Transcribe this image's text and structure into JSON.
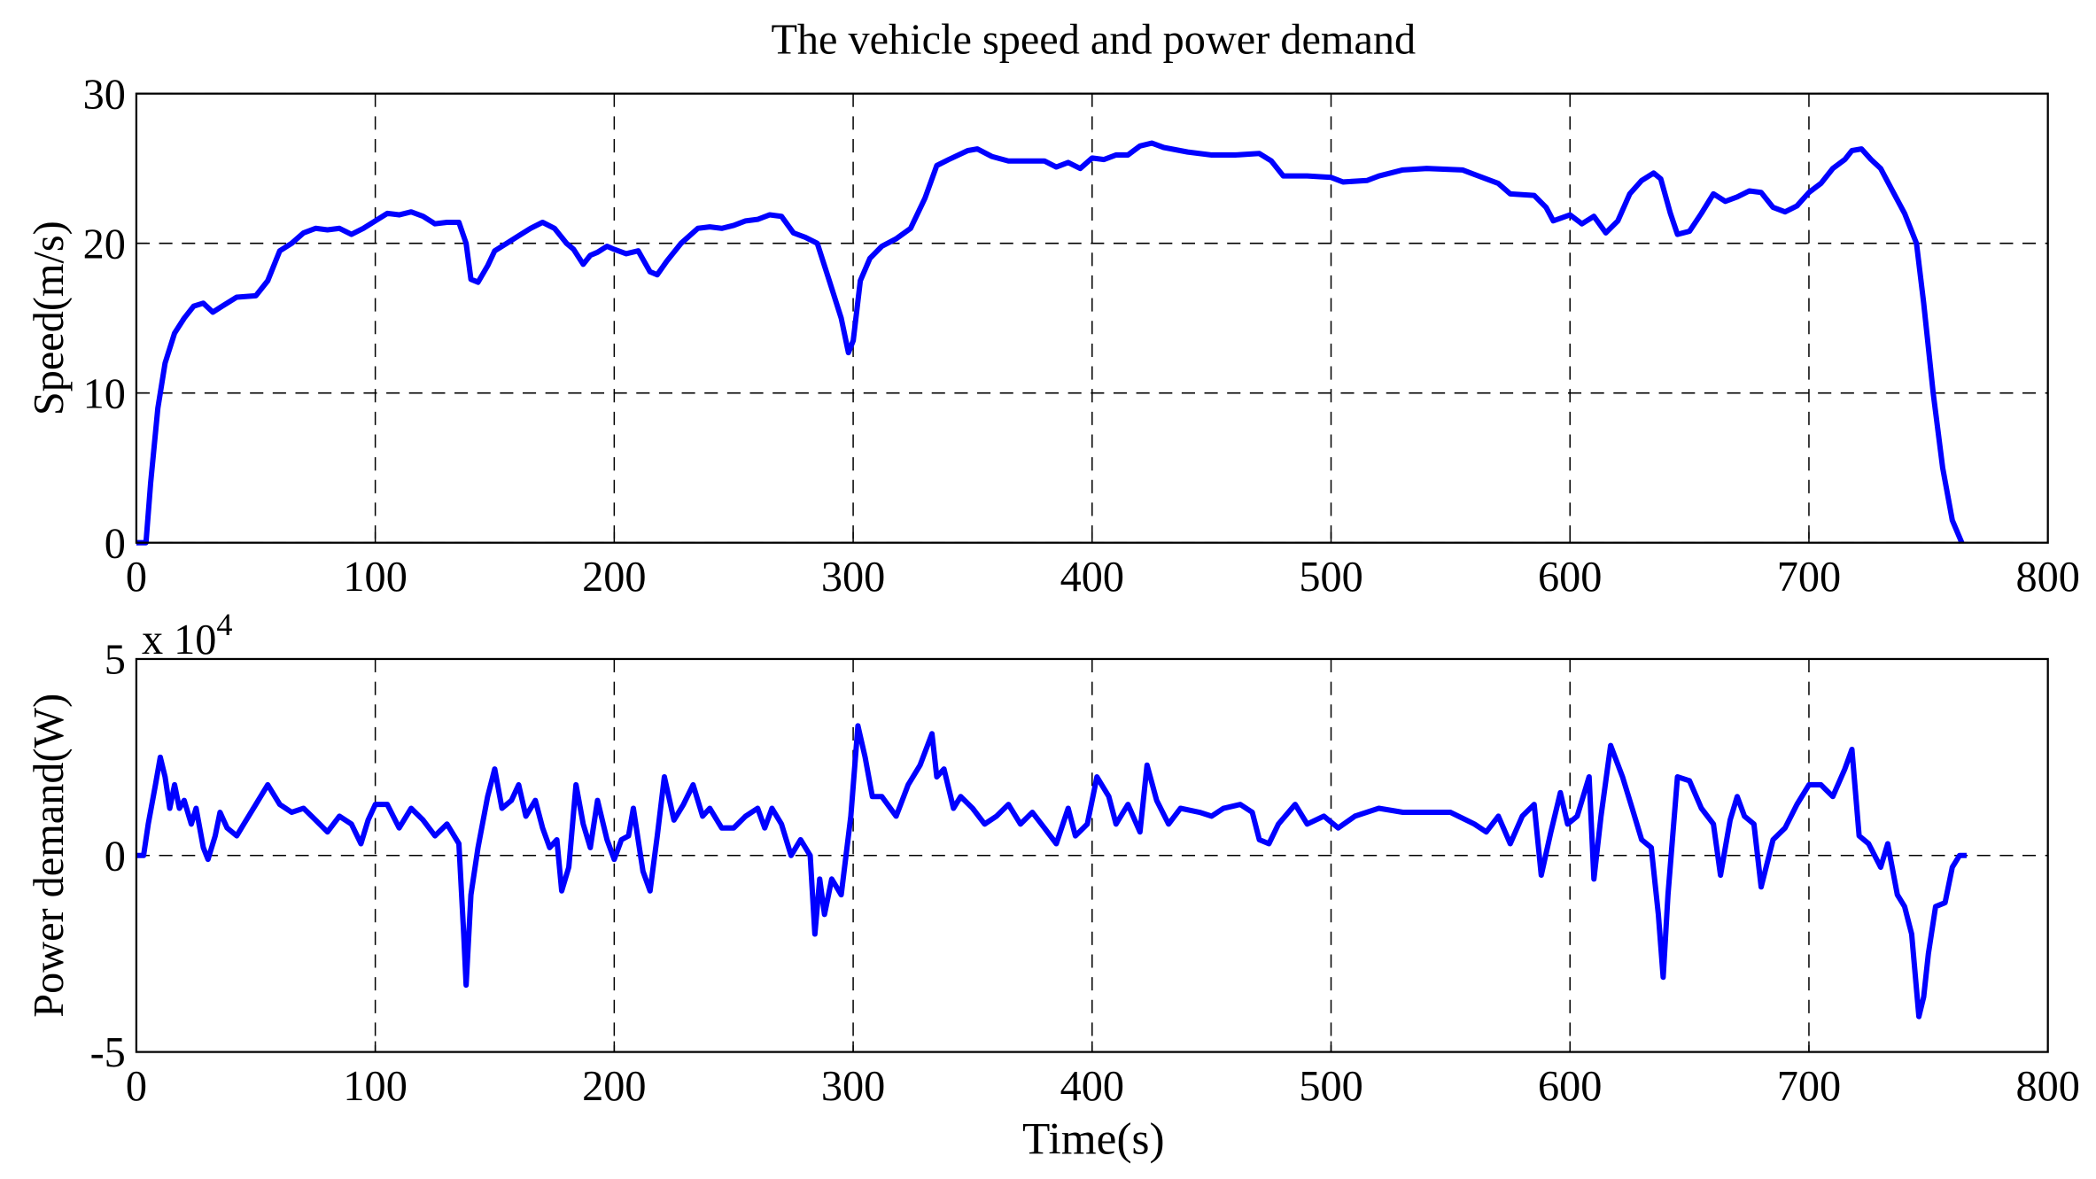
{
  "chart_data": [
    {
      "type": "line",
      "title": "The vehicle speed and power demand",
      "ylabel": "Speed(m/s)",
      "x": [
        0,
        4,
        6,
        9,
        12,
        16,
        20,
        24,
        28,
        32,
        36,
        42,
        50,
        55,
        60,
        65,
        70,
        75,
        80,
        85,
        90,
        95,
        100,
        105,
        110,
        115,
        120,
        125,
        130,
        135,
        138,
        140,
        143,
        147,
        150,
        155,
        160,
        165,
        170,
        175,
        180,
        183,
        187,
        190,
        193,
        197,
        200,
        205,
        210,
        215,
        218,
        222,
        228,
        235,
        240,
        245,
        250,
        255,
        260,
        265,
        270,
        275,
        280,
        285,
        290,
        295,
        298,
        300,
        303,
        307,
        312,
        318,
        324,
        330,
        335,
        340,
        348,
        352,
        358,
        365,
        380,
        385,
        390,
        395,
        400,
        405,
        410,
        415,
        420,
        425,
        430,
        440,
        450,
        460,
        470,
        475,
        480,
        490,
        500,
        505,
        515,
        520,
        530,
        540,
        555,
        560,
        570,
        575,
        585,
        590,
        593,
        600,
        605,
        610,
        615,
        620,
        625,
        630,
        635,
        638,
        642,
        645,
        650,
        655,
        660,
        665,
        670,
        675,
        680,
        685,
        690,
        695,
        700,
        705,
        710,
        715,
        718,
        722,
        726,
        730,
        735,
        740,
        745,
        748,
        752,
        756,
        760,
        764
      ],
      "color": "#0000ff",
      "values": [
        0,
        0,
        4,
        9,
        12,
        14,
        15,
        15.8,
        16,
        15.4,
        15.8,
        16.4,
        16.5,
        17.5,
        19.5,
        20,
        20.7,
        21,
        20.9,
        21,
        20.6,
        21,
        21.5,
        22,
        21.9,
        22.1,
        21.8,
        21.3,
        21.4,
        21.4,
        20,
        17.6,
        17.4,
        18.5,
        19.5,
        20,
        20.5,
        21,
        21.4,
        21,
        20,
        19.6,
        18.6,
        19.2,
        19.4,
        19.8,
        19.6,
        19.3,
        19.5,
        18.1,
        17.9,
        18.8,
        20,
        21,
        21.1,
        21,
        21.2,
        21.5,
        21.6,
        21.9,
        21.8,
        20.7,
        20.4,
        20,
        17.5,
        15,
        12.7,
        13.5,
        17.5,
        19,
        19.8,
        20.3,
        21,
        23,
        25.2,
        25.6,
        26.2,
        26.3,
        25.8,
        25.5,
        25.5,
        25.1,
        25.4,
        25,
        25.7,
        25.6,
        25.9,
        25.9,
        26.5,
        26.7,
        26.4,
        26.1,
        25.9,
        25.9,
        26,
        25.5,
        24.5,
        24.5,
        24.4,
        24.1,
        24.2,
        24.5,
        24.9,
        25,
        24.9,
        24.6,
        24,
        23.3,
        23.2,
        22.4,
        21.5,
        21.9,
        21.3,
        21.8,
        20.7,
        21.5,
        23.3,
        24.2,
        24.7,
        24.3,
        22,
        20.6,
        20.8,
        22,
        23.3,
        22.8,
        23.1,
        23.5,
        23.4,
        22.4,
        22.1,
        22.5,
        23.4,
        24,
        25,
        25.6,
        26.2,
        26.3,
        25.6,
        25,
        23.5,
        22,
        20,
        16,
        10,
        5,
        1.5,
        0
      ],
      "xlim": [
        0,
        800
      ],
      "xticks": [
        0,
        100,
        200,
        300,
        400,
        500,
        600,
        700,
        800
      ],
      "ylim": [
        0,
        30
      ],
      "yticks": [
        0,
        10,
        20,
        30
      ],
      "grid": true
    },
    {
      "type": "line",
      "ylabel": "Power demand(W)",
      "xlabel": "Time(s)",
      "y_scale_label": "x 10",
      "y_scale_exponent": "4",
      "x": [
        0,
        3,
        5,
        8,
        10,
        12,
        14,
        16,
        18,
        20,
        23,
        25,
        28,
        30,
        33,
        35,
        38,
        42,
        45,
        50,
        55,
        60,
        65,
        70,
        75,
        80,
        85,
        90,
        94,
        97,
        100,
        105,
        110,
        115,
        120,
        125,
        130,
        135,
        137,
        138,
        140,
        143,
        147,
        150,
        153,
        157,
        160,
        163,
        167,
        170,
        173,
        176,
        178,
        181,
        184,
        187,
        190,
        193,
        197,
        200,
        203,
        206,
        208,
        212,
        215,
        218,
        221,
        225,
        229,
        233,
        237,
        240,
        245,
        250,
        255,
        260,
        263,
        266,
        270,
        274,
        278,
        282,
        284,
        286,
        288,
        291,
        295,
        299,
        302,
        305,
        308,
        312,
        318,
        323,
        328,
        333,
        335,
        338,
        342,
        345,
        350,
        355,
        360,
        365,
        370,
        375,
        380,
        385,
        390,
        393,
        398,
        402,
        407,
        410,
        415,
        420,
        423,
        427,
        432,
        437,
        445,
        450,
        455,
        462,
        467,
        470,
        474,
        478,
        485,
        490,
        497,
        503,
        510,
        520,
        530,
        540,
        550,
        560,
        565,
        570,
        575,
        580,
        585,
        588,
        592,
        596,
        599,
        603,
        608,
        610,
        613,
        617,
        622,
        626,
        630,
        634,
        637,
        639,
        641,
        645,
        650,
        655,
        660,
        663,
        667,
        670,
        673,
        677,
        680,
        685,
        690,
        695,
        700,
        705,
        710,
        715,
        718,
        721,
        725,
        730,
        733,
        737,
        740,
        743,
        746,
        748,
        750,
        753,
        757,
        760,
        763,
        766
      ],
      "color": "#0000ff",
      "values": [
        0,
        0,
        0.8,
        1.8,
        2.5,
        2,
        1.2,
        1.8,
        1.2,
        1.4,
        0.8,
        1.2,
        0.2,
        -0.1,
        0.5,
        1.1,
        0.7,
        0.5,
        0.8,
        1.3,
        1.8,
        1.3,
        1.1,
        1.2,
        0.9,
        0.6,
        1,
        0.8,
        0.3,
        0.9,
        1.3,
        1.3,
        0.7,
        1.2,
        0.9,
        0.5,
        0.8,
        0.3,
        -2,
        -3.3,
        -1,
        0.2,
        1.5,
        2.2,
        1.2,
        1.4,
        1.8,
        1,
        1.4,
        0.7,
        0.2,
        0.4,
        -0.9,
        -0.3,
        1.8,
        0.8,
        0.2,
        1.4,
        0.4,
        -0.1,
        0.4,
        0.5,
        1.2,
        -0.4,
        -0.9,
        0.5,
        2,
        0.9,
        1.3,
        1.8,
        1,
        1.2,
        0.7,
        0.7,
        1,
        1.2,
        0.7,
        1.2,
        0.8,
        0,
        0.4,
        0,
        -2,
        -0.6,
        -1.5,
        -0.6,
        -1,
        1,
        3.3,
        2.5,
        1.5,
        1.5,
        1,
        1.8,
        2.3,
        3.1,
        2,
        2.2,
        1.2,
        1.5,
        1.2,
        0.8,
        1,
        1.3,
        0.8,
        1.1,
        0.7,
        0.3,
        1.2,
        0.5,
        0.8,
        2,
        1.5,
        0.8,
        1.3,
        0.6,
        2.3,
        1.4,
        0.8,
        1.2,
        1.1,
        1,
        1.2,
        1.3,
        1.1,
        0.4,
        0.3,
        0.8,
        1.3,
        0.8,
        1,
        0.7,
        1,
        1.2,
        1.1,
        1.1,
        1.1,
        0.8,
        0.6,
        1,
        0.3,
        1,
        1.3,
        -0.5,
        0.6,
        1.6,
        0.8,
        1,
        2,
        -0.6,
        1,
        2.8,
        2,
        1.2,
        0.4,
        0.2,
        -1.5,
        -3.1,
        -1,
        2,
        1.9,
        1.2,
        0.8,
        -0.5,
        0.9,
        1.5,
        1,
        0.8,
        -0.8,
        0.4,
        0.7,
        1.3,
        1.8,
        1.8,
        1.5,
        2.2,
        2.7,
        0.5,
        0.3,
        -0.3,
        0.3,
        -1,
        -1.3,
        -2,
        -4.1,
        -3.6,
        -2.5,
        -1.3,
        -1.2,
        -0.3,
        0,
        0
      ],
      "xlim": [
        0,
        800
      ],
      "xticks": [
        0,
        100,
        200,
        300,
        400,
        500,
        600,
        700,
        800
      ],
      "ylim": [
        -5,
        5
      ],
      "yticks": [
        -5,
        0,
        5
      ],
      "grid": true
    }
  ]
}
